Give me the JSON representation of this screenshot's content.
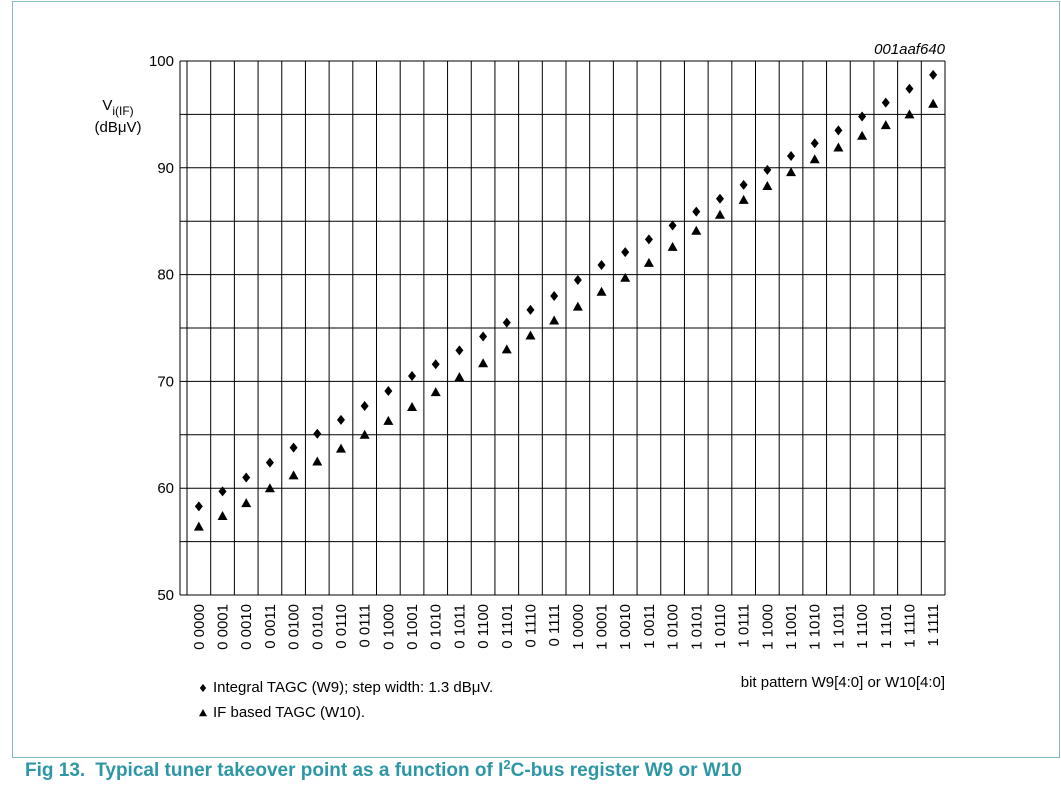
{
  "chart_data": {
    "type": "scatter",
    "annotation": "001aaf640",
    "ylabel": {
      "main": "V",
      "sub": "i(IF)",
      "unit": "(dBμV)"
    },
    "xlabel": "bit pattern W9[4:0] or W10[4:0]",
    "categories": [
      "0 0000",
      "0 0001",
      "0 0010",
      "0 0011",
      "0 0100",
      "0 0101",
      "0 0110",
      "0 0111",
      "0 1000",
      "0 1001",
      "0 1010",
      "0 1011",
      "0 1100",
      "0 1101",
      "0 1110",
      "0 1111",
      "1 0000",
      "1 0001",
      "1 0010",
      "1 0011",
      "1 0100",
      "1 0101",
      "1 0110",
      "1 0111",
      "1 1000",
      "1 1001",
      "1 1010",
      "1 1011",
      "1 1100",
      "1 1101",
      "1 1110",
      "1 1111"
    ],
    "series": [
      {
        "name": "Integral TAGC (W9); step width: 1.3 dBμV.",
        "color": "#000000",
        "marker": "diamond",
        "values": [
          58.3,
          59.7,
          61.0,
          62.4,
          63.8,
          65.1,
          66.4,
          67.7,
          69.1,
          70.5,
          71.6,
          72.9,
          74.2,
          75.5,
          76.7,
          78.0,
          79.5,
          80.9,
          82.1,
          83.3,
          84.6,
          85.9,
          87.1,
          88.4,
          89.8,
          91.1,
          92.3,
          93.5,
          94.8,
          96.1,
          97.4,
          98.7
        ]
      },
      {
        "name": "IF based TAGC (W10).",
        "color": "#000000",
        "marker": "triangle",
        "values": [
          56.4,
          57.4,
          58.6,
          60.0,
          61.2,
          62.5,
          63.7,
          65.0,
          66.3,
          67.6,
          69.0,
          70.4,
          71.7,
          73.0,
          74.3,
          75.7,
          77.0,
          78.4,
          79.7,
          81.1,
          82.6,
          84.1,
          85.6,
          87.0,
          88.3,
          89.6,
          90.8,
          91.9,
          93.0,
          94.0,
          95.0,
          96.0
        ]
      }
    ],
    "ylim": [
      50,
      100
    ],
    "yticks": [
      50,
      60,
      70,
      80,
      90,
      100
    ],
    "yminor": [
      55,
      65,
      75,
      85,
      95
    ],
    "grid": true
  },
  "caption": {
    "label": "Fig 13.",
    "text": "Typical tuner takeover point as a function of I",
    "sup": "2",
    "rest": "C-bus register W9 or W10"
  }
}
